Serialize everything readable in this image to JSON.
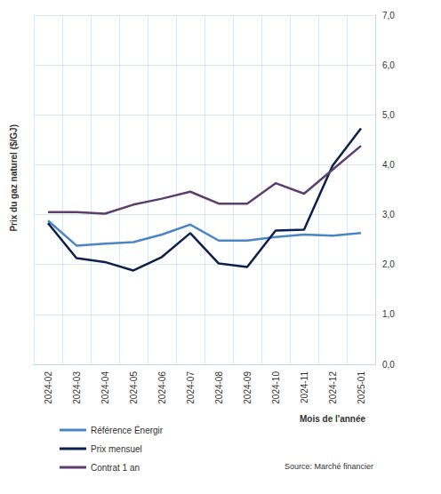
{
  "chart_data": {
    "type": "line",
    "y_label": "Prix du gaz naturel ($/GJ)",
    "x_label": "Mois de l'année",
    "source": "Source: Marché financier",
    "categories": [
      "2024-02",
      "2024-03",
      "2024-04",
      "2024-05",
      "2024-06",
      "2024-07",
      "2024-08",
      "2024-09",
      "2024-10",
      "2024-11",
      "2024-12",
      "2025-01"
    ],
    "series": [
      {
        "name": "Référence Énergir",
        "color": "#4a86c5",
        "values": [
          2.88,
          2.38,
          2.42,
          2.45,
          2.6,
          2.8,
          2.48,
          2.48,
          2.55,
          2.6,
          2.58,
          2.63
        ]
      },
      {
        "name": "Prix mensuel",
        "color": "#0d1f4f",
        "values": [
          2.83,
          2.13,
          2.05,
          1.88,
          2.15,
          2.63,
          2.02,
          1.95,
          2.68,
          2.7,
          3.98,
          4.73
        ]
      },
      {
        "name": "Contrat 1 an",
        "color": "#5b3f6f",
        "values": [
          3.05,
          3.05,
          3.02,
          3.2,
          3.32,
          3.46,
          3.22,
          3.22,
          3.63,
          3.42,
          3.9,
          4.38
        ]
      }
    ],
    "ylim": [
      0,
      7
    ],
    "yticks": [
      {
        "value": 0,
        "label": "0,0"
      },
      {
        "value": 1,
        "label": "1,0"
      },
      {
        "value": 2,
        "label": "2,0"
      },
      {
        "value": 3,
        "label": "3,0"
      },
      {
        "value": 4,
        "label": "4,0"
      },
      {
        "value": 5,
        "label": "5,0"
      },
      {
        "value": 6,
        "label": "6,0"
      },
      {
        "value": 7,
        "label": "7,0"
      }
    ],
    "grid": true,
    "legend": "bottom-left"
  }
}
